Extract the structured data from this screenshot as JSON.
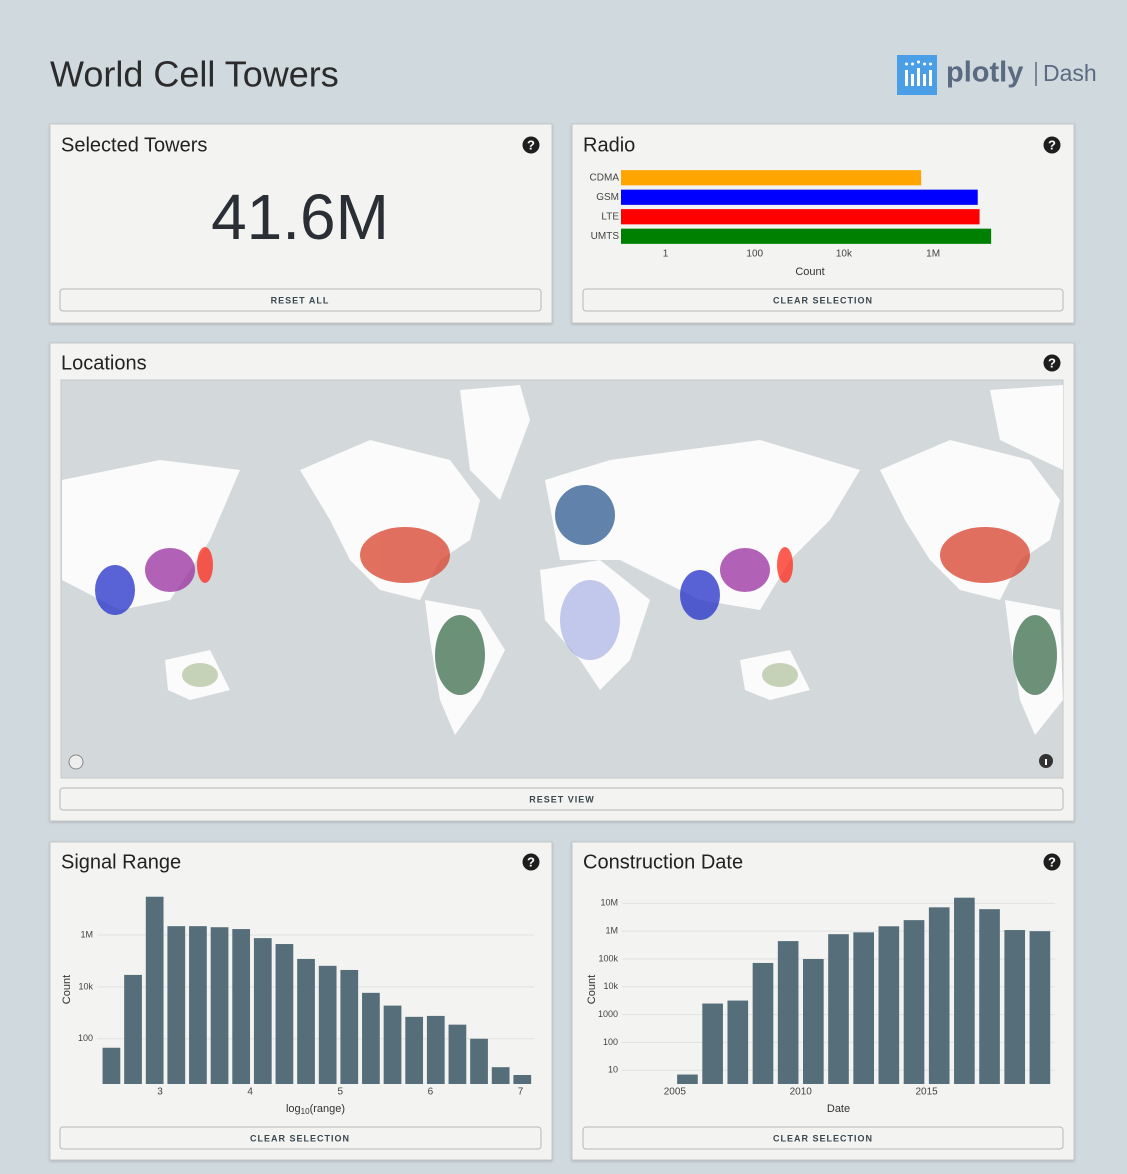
{
  "header": {
    "title": "World Cell Towers",
    "logo_text": "plotly",
    "logo_product": "Dash"
  },
  "help_icon": "?",
  "selected": {
    "title": "Selected Towers",
    "value": "41.6M",
    "button": "RESET ALL"
  },
  "radio": {
    "title": "Radio",
    "button": "CLEAR SELECTION",
    "chart": {
      "type": "hbar",
      "categories": [
        "CDMA",
        "GSM",
        "LTE",
        "UMTS"
      ],
      "values": [
        537000,
        10000000,
        11000000,
        20000000
      ],
      "colors": [
        "#ffa500",
        "#0000ff",
        "#ff0000",
        "#008000"
      ],
      "xlog": true,
      "xlim": [
        0.1,
        30000000
      ],
      "xticks": [
        1,
        100,
        {
          "value": 10000,
          "label": "10k"
        },
        {
          "value": 1000000,
          "label": "1M"
        }
      ],
      "xlabel": "Count"
    }
  },
  "locations": {
    "title": "Locations",
    "button": "RESET VIEW"
  },
  "signal": {
    "title": "Signal Range",
    "button": "CLEAR SELECTION",
    "chart": {
      "type": "histogram",
      "bins": [
        2.34,
        2.58,
        2.82,
        3.06,
        3.3,
        3.54,
        3.78,
        4.02,
        4.26,
        4.5,
        4.74,
        4.98,
        5.22,
        5.46,
        5.7,
        5.94,
        6.18,
        6.42,
        6.66,
        6.9,
        7.14
      ],
      "values": [
        45,
        29000,
        30000000,
        2200000,
        2200000,
        2000000,
        1700000,
        760000,
        450000,
        120000,
        65000,
        45000,
        5900,
        1900,
        700,
        760,
        350,
        100,
        8,
        4
      ],
      "color": "#566e7a",
      "xlim": [
        2.3,
        7.15
      ],
      "xticks": [
        3,
        4,
        5,
        6,
        7
      ],
      "ylog": true,
      "ylim": [
        1.8,
        35000000
      ],
      "yticks": [
        100,
        {
          "value": 10000,
          "label": "10k"
        },
        {
          "value": 1000000,
          "label": "1M"
        }
      ],
      "grid": true,
      "xlabel": {
        "base": "log",
        "sub": "10",
        "rest": "(range)"
      },
      "ylabel": "Count"
    }
  },
  "construction": {
    "title": "Construction Date",
    "button": "CLEAR SELECTION",
    "chart": {
      "type": "histogram",
      "bins": [
        2005,
        2006,
        2007,
        2008,
        2009,
        2010,
        2011,
        2012,
        2013,
        2014,
        2015,
        2016,
        2017,
        2018,
        2019,
        2020
      ],
      "values": [
        7,
        2500,
        3200,
        72000,
        440000,
        100000,
        780000,
        910000,
        1500000,
        2500000,
        7200000,
        16000000,
        6200000,
        1100000,
        1000000
      ],
      "color": "#566e7a",
      "xlim": [
        2002.9,
        2020.1
      ],
      "xticks": [
        2005,
        2010,
        2015
      ],
      "ylog": true,
      "ylim": [
        3.2,
        20000000
      ],
      "yticks": [
        10,
        100,
        1000,
        {
          "value": 10000,
          "label": "10k"
        },
        {
          "value": 100000,
          "label": "100k"
        },
        {
          "value": 1000000,
          "label": "1M"
        },
        {
          "value": 10000000,
          "label": "10M"
        }
      ],
      "grid": true,
      "xlabel": "Date",
      "ylabel": "Count"
    }
  }
}
